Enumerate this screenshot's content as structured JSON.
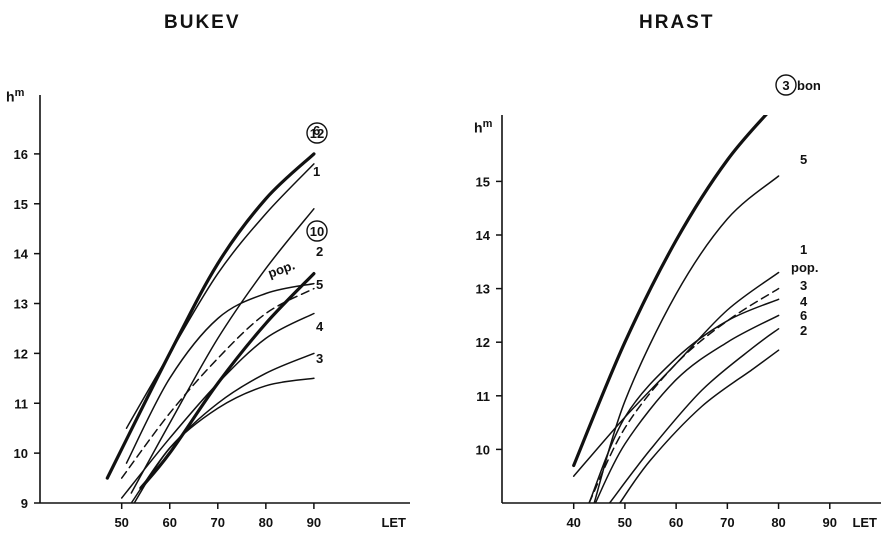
{
  "chart_data": [
    {
      "type": "line",
      "title": "BUKEV",
      "ylabel": "h",
      "ylabel_sup": "m",
      "xlabel": "LET",
      "xlim": [
        33,
        110
      ],
      "ylim": [
        9,
        16.8
      ],
      "x_ticks": [
        50,
        60,
        70,
        80,
        90
      ],
      "y_ticks": [
        9,
        10,
        11,
        12,
        13,
        14,
        15,
        16
      ],
      "grid": false,
      "series": [
        {
          "name": "12",
          "circled": true,
          "style": "bold",
          "x": [
            47,
            60,
            70,
            80,
            90
          ],
          "y": [
            9.5,
            12.0,
            13.8,
            15.1,
            16.0
          ]
        },
        {
          "name": "6",
          "style": "solid",
          "x": [
            51,
            60,
            70,
            80,
            90
          ],
          "y": [
            10.5,
            12.0,
            13.6,
            14.8,
            15.8
          ]
        },
        {
          "name": "1",
          "style": "solid",
          "x": [
            52,
            60,
            70,
            80,
            90
          ],
          "y": [
            9.2,
            10.6,
            12.3,
            13.7,
            14.9
          ]
        },
        {
          "name": "10",
          "circled": true,
          "style": "bold",
          "x": [
            54,
            60,
            70,
            80,
            90
          ],
          "y": [
            9.3,
            10.0,
            11.4,
            12.6,
            13.6
          ]
        },
        {
          "name": "2",
          "style": "solid",
          "x": [
            51,
            60,
            70,
            80,
            90
          ],
          "y": [
            9.8,
            11.5,
            12.7,
            13.2,
            13.4
          ]
        },
        {
          "name": "pop.",
          "style": "dashed",
          "x": [
            50,
            60,
            70,
            80,
            90
          ],
          "y": [
            9.5,
            10.8,
            11.9,
            12.8,
            13.3
          ]
        },
        {
          "name": "5",
          "style": "solid",
          "x": [
            50,
            60,
            70,
            80,
            90
          ],
          "y": [
            9.1,
            10.3,
            11.4,
            12.3,
            12.8
          ]
        },
        {
          "name": "4",
          "style": "solid",
          "x": [
            52,
            60,
            70,
            80,
            90
          ],
          "y": [
            9.0,
            10.1,
            11.0,
            11.6,
            12.0
          ]
        },
        {
          "name": "3",
          "style": "solid",
          "x": [
            52,
            60,
            70,
            80,
            90
          ],
          "y": [
            8.9,
            10.1,
            10.9,
            11.35,
            11.5
          ]
        }
      ]
    },
    {
      "type": "line",
      "title": "HRAST",
      "ylabel": "h",
      "ylabel_sup": "m",
      "xlabel": "LET",
      "xlim": [
        26,
        100
      ],
      "ylim": [
        9,
        16.5
      ],
      "x_ticks": [
        40,
        50,
        60,
        70,
        80,
        90
      ],
      "y_ticks": [
        10,
        11,
        12,
        13,
        14,
        15
      ],
      "grid": false,
      "series": [
        {
          "name": "3",
          "circled": true,
          "suffix": "bon",
          "style": "bold",
          "x": [
            40,
            50,
            60,
            70,
            80
          ],
          "y": [
            9.7,
            12.0,
            13.9,
            15.4,
            16.5
          ]
        },
        {
          "name": "5",
          "style": "solid",
          "x": [
            44,
            50,
            60,
            70,
            80
          ],
          "y": [
            9.0,
            10.9,
            12.9,
            14.3,
            15.1
          ]
        },
        {
          "name": "1",
          "style": "solid",
          "x": [
            40,
            50,
            60,
            70,
            80
          ],
          "y": [
            9.5,
            10.6,
            11.6,
            12.6,
            13.3
          ]
        },
        {
          "name": "pop.",
          "style": "dashed",
          "x": [
            43,
            50,
            60,
            70,
            80
          ],
          "y": [
            9.0,
            10.4,
            11.6,
            12.4,
            13.0
          ]
        },
        {
          "name": "3",
          "style": "solid",
          "x": [
            43,
            50,
            60,
            70,
            80
          ],
          "y": [
            9.0,
            10.6,
            11.7,
            12.4,
            12.8
          ]
        },
        {
          "name": "4",
          "style": "solid",
          "x": [
            44,
            50,
            60,
            70,
            80
          ],
          "y": [
            8.95,
            10.1,
            11.3,
            12.0,
            12.5
          ]
        },
        {
          "name": "6",
          "style": "solid",
          "x": [
            47,
            55,
            65,
            75,
            80
          ],
          "y": [
            9.0,
            10.0,
            11.1,
            11.9,
            12.25
          ]
        },
        {
          "name": "2",
          "style": "solid",
          "x": [
            49,
            55,
            65,
            75,
            80
          ],
          "y": [
            9.0,
            9.8,
            10.8,
            11.5,
            11.85
          ]
        }
      ]
    }
  ]
}
